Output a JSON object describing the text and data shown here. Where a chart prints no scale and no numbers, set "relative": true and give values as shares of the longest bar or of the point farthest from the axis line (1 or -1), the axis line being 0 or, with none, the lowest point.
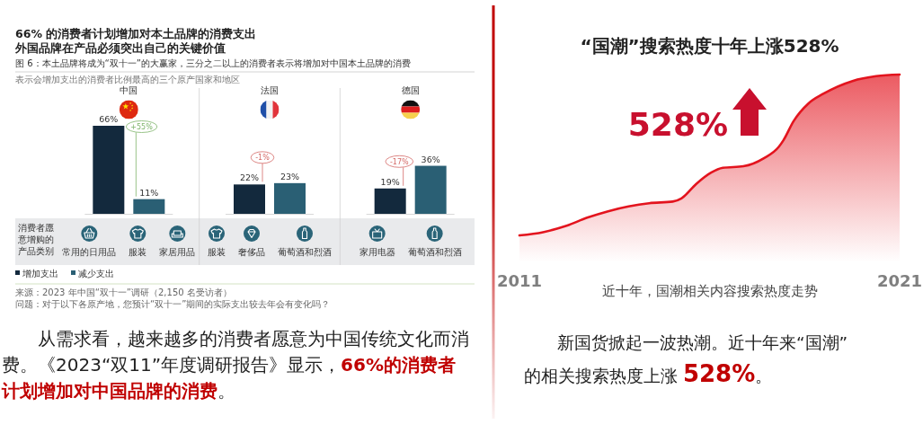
{
  "chart_data": [
    {
      "type": "bar",
      "title": "66% 的消费者计划增加对本土品牌的消费支出外国品牌在产品必须突出自己的关键价值",
      "subtitle": "图 6：本土品牌将成为“双十一”的大赢家，三分之二以上的消费者表示将增加对中国本土品牌的消费",
      "categories": [
        "中国",
        "法国",
        "德国"
      ],
      "series": [
        {
          "name": "增加支出",
          "color": "#13293d",
          "values": [
            66,
            22,
            19
          ],
          "value_labels": [
            "66%",
            "22%",
            "19%"
          ]
        },
        {
          "name": "减少支出",
          "color": "#2a5f74",
          "values": [
            11,
            23,
            36
          ],
          "value_labels": [
            "11%",
            "23%",
            "36%"
          ]
        }
      ],
      "legend": "bottom left",
      "tick_labels": "x",
      "annotations": [
        "表示会增加支出的消费者比例最高的三个原产国家和地区",
        "消费者愿意增购的产品类别",
        "常用的日用品",
        "服装",
        "家居用品",
        "服装",
        "奢侈品",
        "葡萄酒和烈酒",
        "家用电器",
        "葡萄酒和烈酒",
        "+55%",
        "-1%",
        "-17%",
        "来源：2023 年中国“双十一”调研（2,150 名受访者）",
        "问题：对于以下各原产地，您预计“双十一”期间的实际支出较去年会有变化吗？",
        "从需求看，越来越多的消费者愿意为中国传统文化而消费。《2023“双11”年度调研报告》显示，",
        "66%的消费者计划增加对中国品牌的消费",
        "。"
      ]
    },
    {
      "type": "area",
      "title": "“国潮”搜索热度十年上涨528%",
      "xlabel": "近十年，国潮相关内容搜索热度走势",
      "x": [
        2011,
        2011.62,
        2012.24,
        2012.78,
        2013.33,
        2013.87,
        2014.41,
        2015.03,
        2015.26,
        2015.65,
        2016.04,
        2016.35,
        2016.89,
        2017.43,
        2017.82,
        2017.94,
        2018.21,
        2018.6,
        2018.99,
        2019.76,
        2020.38,
        2021
      ],
      "series": [
        {
          "color": "#e3141e",
          "values": [
            0,
            0.02,
            0.06,
            0.11,
            0.15,
            0.18,
            0.2,
            0.21,
            0.23,
            0.32,
            0.39,
            0.42,
            0.43,
            0.48,
            0.55,
            0.59,
            0.71,
            0.82,
            0.88,
            0.96,
            0.99,
            1
          ]
        }
      ],
      "relative": true,
      "xlim": [
        2011,
        2021
      ],
      "xticks": [
        2011,
        2021
      ],
      "annotations": [
        "528%",
        "新国货掀起一波热潮。近十年来“国潮”的相关搜索热度上涨 ",
        "528%",
        "。"
      ]
    }
  ]
}
